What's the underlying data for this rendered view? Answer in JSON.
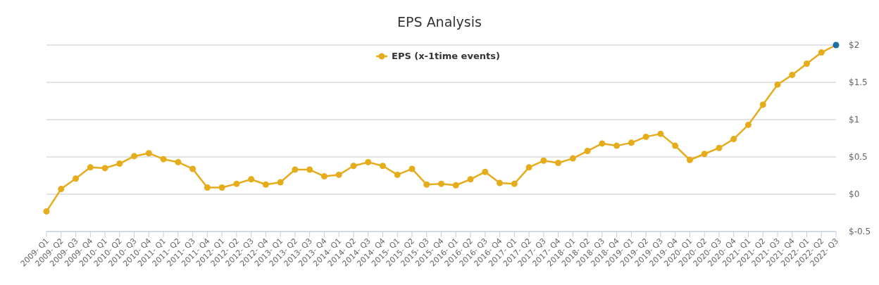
{
  "chart_data": {
    "type": "line",
    "title": "EPS Analysis",
    "categories": [
      "2009- Q1",
      "2009- Q2",
      "2009- Q3",
      "2009- Q4",
      "2010- Q1",
      "2010- Q2",
      "2010- Q3",
      "2010- Q4",
      "2011- Q1",
      "2011- Q2",
      "2011- Q3",
      "2011- Q4",
      "2012- Q1",
      "2012- Q2",
      "2012- Q3",
      "2012- Q4",
      "2013- Q1",
      "2013- Q2",
      "2013- Q3",
      "2013- Q4",
      "2014- Q1",
      "2014- Q2",
      "2014- Q3",
      "2014- Q4",
      "2015- Q1",
      "2015- Q2",
      "2015- Q3",
      "2015- Q4",
      "2016- Q1",
      "2016- Q2",
      "2016- Q3",
      "2016- Q4",
      "2017- Q1",
      "2017- Q2",
      "2017- Q3",
      "2017- Q4",
      "2018- Q1",
      "2018- Q2",
      "2018- Q3",
      "2018- Q4",
      "2019- Q1",
      "2019- Q2",
      "2019- Q3",
      "2019- Q4",
      "2020- Q1",
      "2020- Q2",
      "2020- Q3",
      "2020- Q4",
      "2021- Q1",
      "2021- Q2",
      "2021- Q3",
      "2021- Q4",
      "2022- Q1",
      "2022- Q2",
      "2022- Q3"
    ],
    "series": [
      {
        "name": "EPS (x-1time events)",
        "color": "#e5ac1c",
        "values": [
          -0.23,
          0.07,
          0.21,
          0.36,
          0.35,
          0.41,
          0.51,
          0.55,
          0.47,
          0.43,
          0.34,
          0.09,
          0.09,
          0.14,
          0.2,
          0.13,
          0.16,
          0.33,
          0.33,
          0.24,
          0.26,
          0.38,
          0.43,
          0.38,
          0.26,
          0.34,
          0.13,
          0.14,
          0.12,
          0.2,
          0.3,
          0.15,
          0.14,
          0.36,
          0.45,
          0.42,
          0.48,
          0.58,
          0.68,
          0.65,
          0.69,
          0.77,
          0.81,
          0.65,
          0.46,
          0.54,
          0.62,
          0.74,
          0.93,
          1.2,
          1.47,
          1.6,
          1.75,
          1.9,
          2.0
        ],
        "colors": [
          "#e5ac1c",
          "#e5ac1c",
          "#e5ac1c",
          "#e5ac1c",
          "#e5ac1c",
          "#e5ac1c",
          "#e5ac1c",
          "#e5ac1c",
          "#e5ac1c",
          "#e5ac1c",
          "#e5ac1c",
          "#e5ac1c",
          "#e5ac1c",
          "#e5ac1c",
          "#e5ac1c",
          "#e5ac1c",
          "#e5ac1c",
          "#e5ac1c",
          "#e5ac1c",
          "#e5ac1c",
          "#e5ac1c",
          "#e5ac1c",
          "#e5ac1c",
          "#e5ac1c",
          "#e5ac1c",
          "#e5ac1c",
          "#e5ac1c",
          "#e5ac1c",
          "#e5ac1c",
          "#e5ac1c",
          "#e5ac1c",
          "#e5ac1c",
          "#e5ac1c",
          "#e5ac1c",
          "#e5ac1c",
          "#e5ac1c",
          "#e5ac1c",
          "#e5ac1c",
          "#e5ac1c",
          "#e5ac1c",
          "#e5ac1c",
          "#e5ac1c",
          "#e5ac1c",
          "#e5ac1c",
          "#e5ac1c",
          "#e5ac1c",
          "#e5ac1c",
          "#e5ac1c",
          "#e5ac1c",
          "#e5ac1c",
          "#e5ac1c",
          "#e5ac1c",
          "#e5ac1c",
          "#e5ac1c",
          "#1a6fa8"
        ]
      }
    ],
    "ylim": [
      -0.5,
      2
    ],
    "yticks": [
      {
        "value": -0.5,
        "label": "$-0.5"
      },
      {
        "value": 0,
        "label": "$0"
      },
      {
        "value": 0.5,
        "label": "$0.5"
      },
      {
        "value": 1,
        "label": "$1"
      },
      {
        "value": 1.5,
        "label": "$1.5"
      },
      {
        "value": 2,
        "label": "$2"
      }
    ],
    "grid": "y",
    "legend": "top",
    "marker": "circle",
    "line_style": "solid"
  }
}
